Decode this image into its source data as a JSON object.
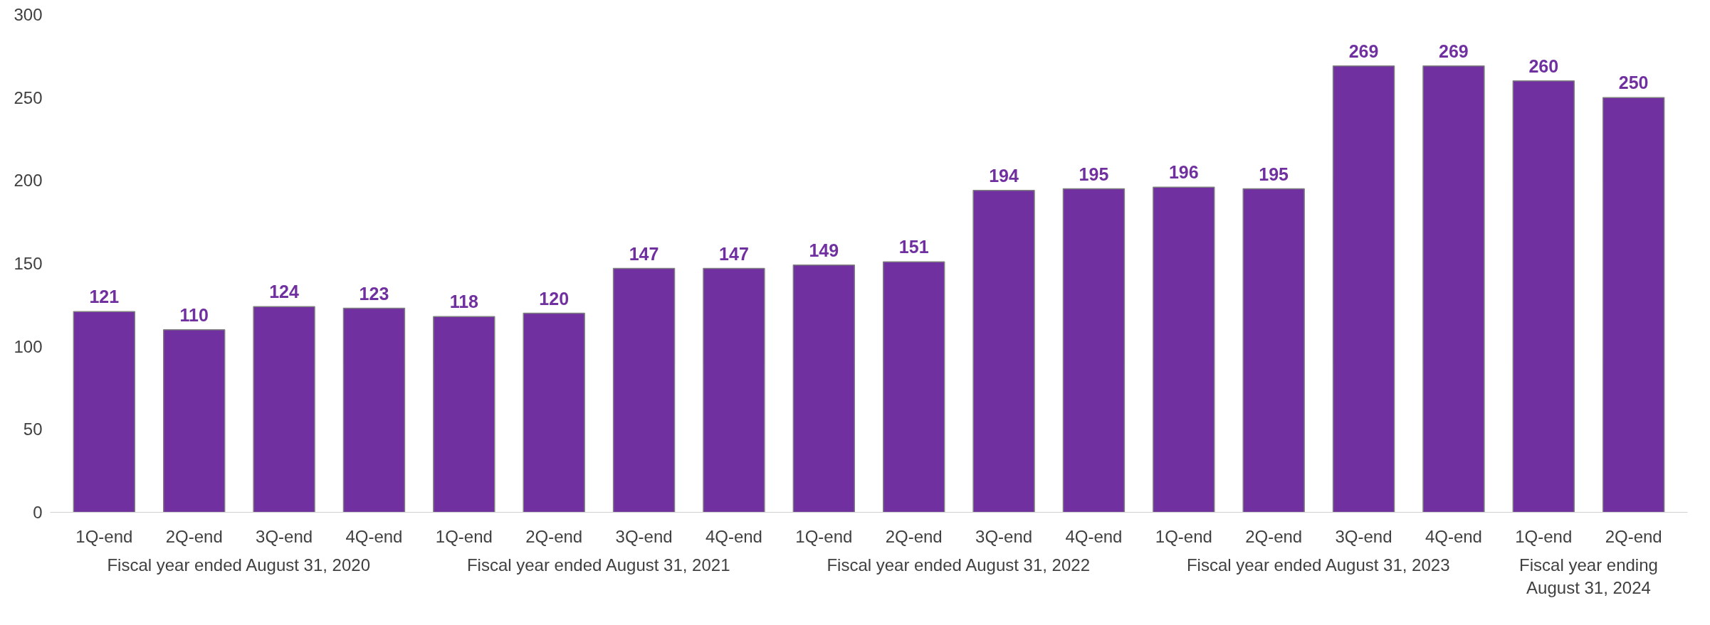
{
  "chart_data": {
    "type": "bar",
    "categories": [
      "1Q-end",
      "2Q-end",
      "3Q-end",
      "4Q-end",
      "1Q-end",
      "2Q-end",
      "3Q-end",
      "4Q-end",
      "1Q-end",
      "2Q-end",
      "3Q-end",
      "4Q-end",
      "1Q-end",
      "2Q-end",
      "3Q-end",
      "4Q-end",
      "1Q-end",
      "2Q-end"
    ],
    "values": [
      121,
      110,
      124,
      123,
      118,
      120,
      147,
      147,
      149,
      151,
      194,
      195,
      196,
      195,
      269,
      269,
      260,
      250
    ],
    "color": "#7030a0",
    "ylim": [
      0,
      300
    ],
    "yticks": [
      0,
      50,
      100,
      150,
      200,
      250,
      300
    ],
    "grid": false,
    "data_labels": true,
    "annotations": [
      "Fiscal year ended August 31, 2020",
      "Fiscal year ended August 31, 2021",
      "Fiscal year ended August 31, 2022",
      "Fiscal year ended August 31, 2023",
      "Fiscal year ending\nAugust 31, 2024"
    ]
  }
}
